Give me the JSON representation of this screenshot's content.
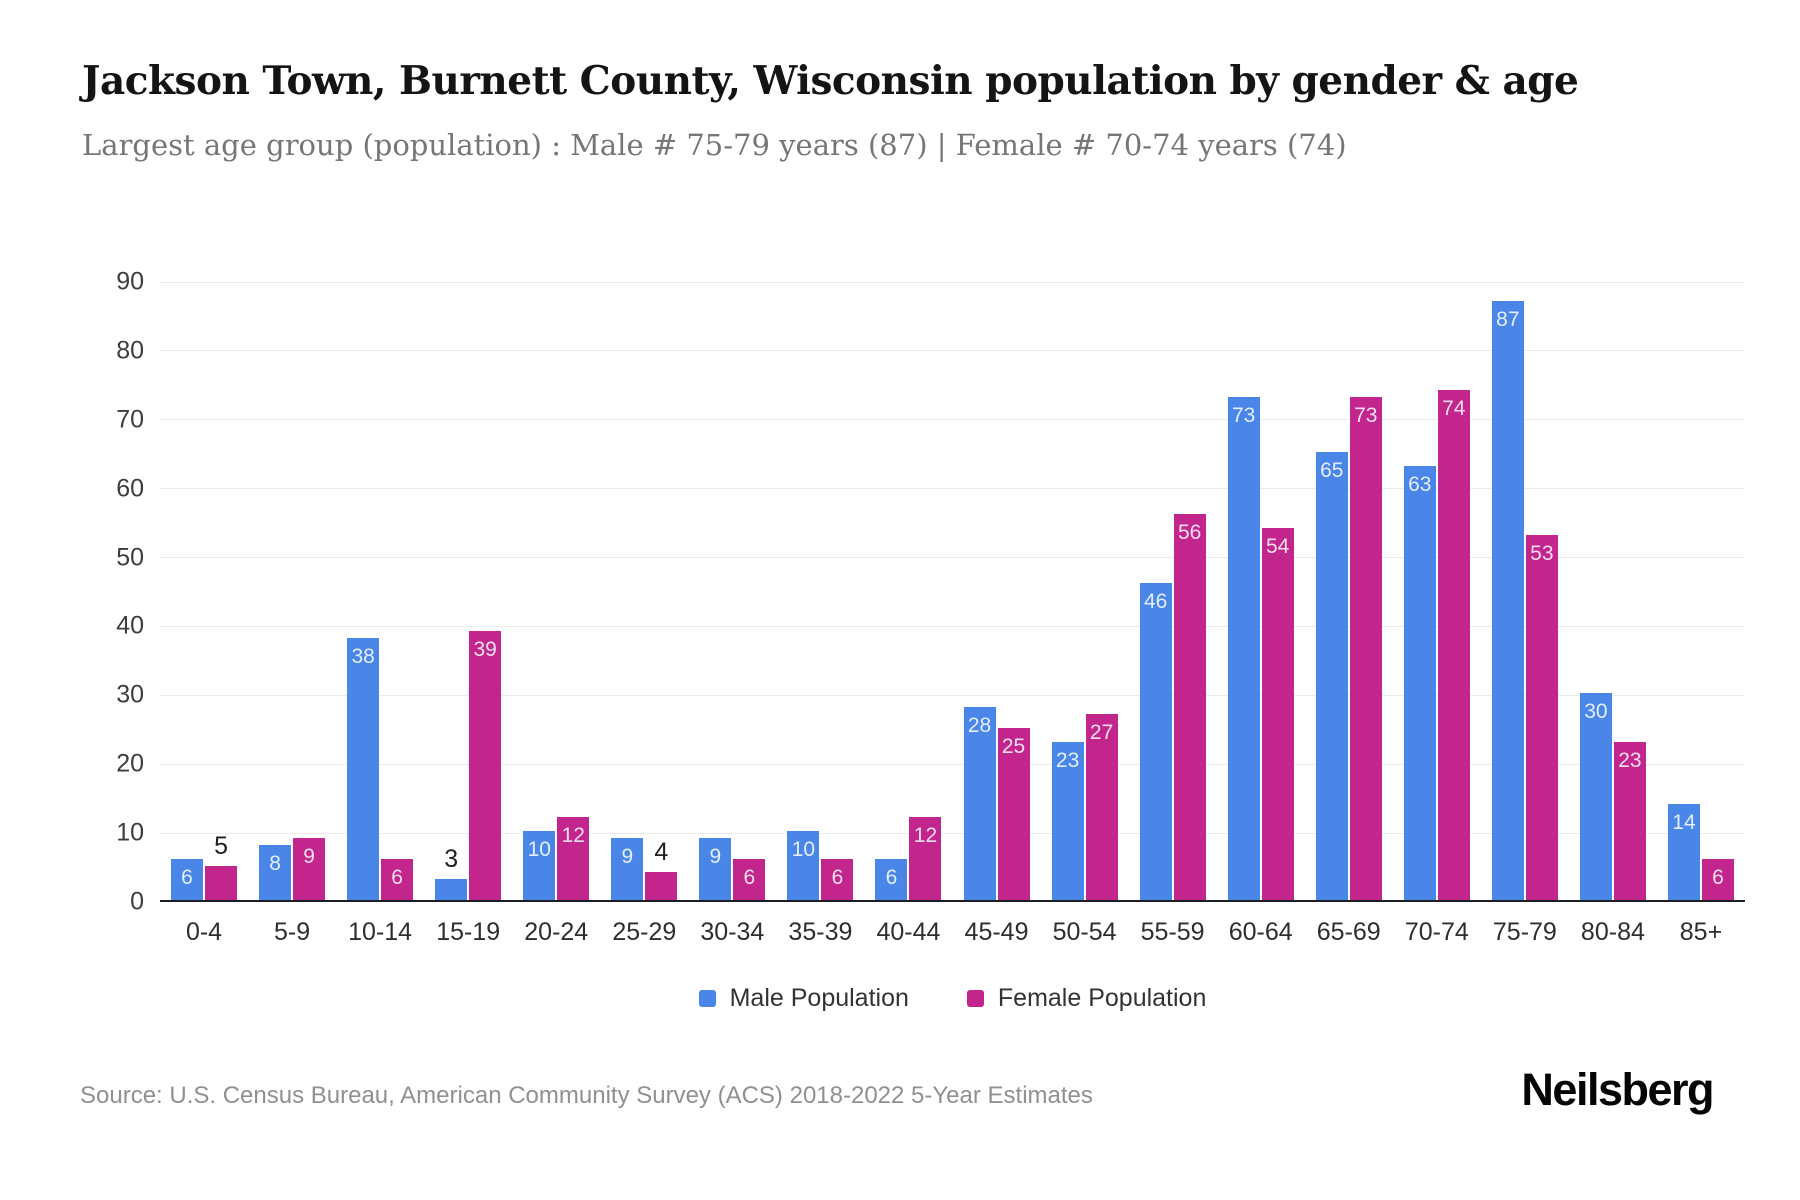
{
  "header": {
    "title": "Jackson Town, Burnett County, Wisconsin population by gender & age",
    "subtitle": "Largest age group (population) : Male # 75-79 years (87) | Female # 70-74 years (74)"
  },
  "chart_data": {
    "type": "bar",
    "title": "Jackson Town, Burnett County, Wisconsin population by gender & age",
    "xlabel": "",
    "ylabel": "",
    "categories": [
      "0-4",
      "5-9",
      "10-14",
      "15-19",
      "20-24",
      "25-29",
      "30-34",
      "35-39",
      "40-44",
      "45-49",
      "50-54",
      "55-59",
      "60-64",
      "65-69",
      "70-74",
      "75-79",
      "80-84",
      "85+"
    ],
    "series": [
      {
        "name": "Male Population",
        "color": "#4a86e8",
        "values": [
          6,
          8,
          38,
          3,
          10,
          9,
          9,
          10,
          6,
          28,
          23,
          46,
          73,
          65,
          63,
          87,
          30,
          14
        ]
      },
      {
        "name": "Female Population",
        "color": "#c2268c",
        "values": [
          5,
          9,
          6,
          39,
          12,
          4,
          6,
          6,
          12,
          25,
          27,
          56,
          54,
          73,
          74,
          53,
          23,
          6
        ]
      }
    ],
    "ylim": [
      0,
      90
    ],
    "ytick_step": 10,
    "yticks": [
      0,
      10,
      20,
      30,
      40,
      50,
      60,
      70,
      80,
      90
    ],
    "grid": true,
    "legend_position": "bottom",
    "label_inside_min": 6
  },
  "footer": {
    "source": "Source: U.S. Census Bureau, American Community Survey (ACS) 2018-2022 5-Year Estimates",
    "brand": "Neilsberg"
  }
}
